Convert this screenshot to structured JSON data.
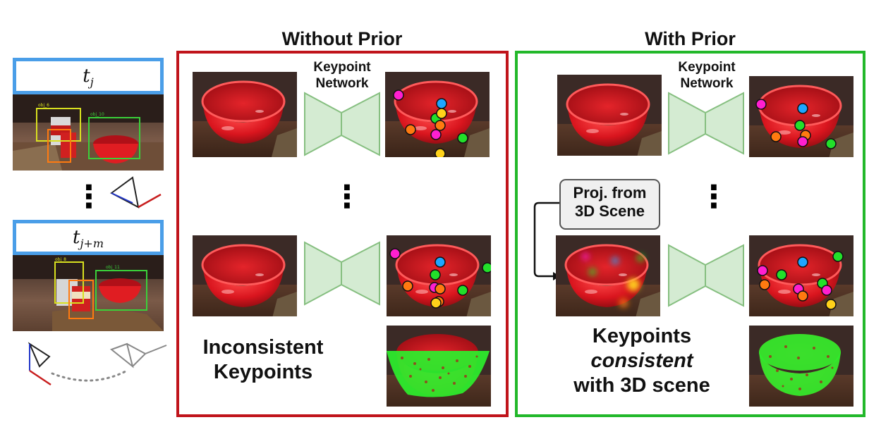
{
  "left_column": {
    "frame_top_label": "t",
    "frame_top_sub": "j",
    "frame_bottom_label": "t",
    "frame_bottom_sub": "j+m",
    "ellipsis": "⋮",
    "tag_labels": [
      "obj_6",
      "obj_10",
      "obj_8",
      "obj_11"
    ]
  },
  "without_prior": {
    "title": "Without Prior",
    "border_color": "#c0141b",
    "network_label_line1": "Keypoint",
    "network_label_line2": "Network",
    "ellipsis": "⋮",
    "caption_line1": "Inconsistent",
    "caption_line2": "Keypoints"
  },
  "with_prior": {
    "title": "With Prior",
    "border_color": "#22b82a",
    "network_label_line1": "Keypoint",
    "network_label_line2": "Network",
    "ellipsis": "⋮",
    "projection_line1": "Proj. from",
    "projection_line2": "3D Scene",
    "caption_line1": "Keypoints",
    "caption_line2": "consistent",
    "caption_line3": "with 3D scene"
  },
  "colors": {
    "network_fill": "#d4ebd2",
    "network_stroke": "#86bf80",
    "bowl_red": "#d9151e",
    "keypoint_magenta": "#ff1fd0",
    "keypoint_blue": "#1ea6ff",
    "keypoint_green": "#22e02a",
    "keypoint_orange": "#ff7a10",
    "keypoint_yellow": "#ffd21a",
    "mask_green": "#2df02d"
  }
}
